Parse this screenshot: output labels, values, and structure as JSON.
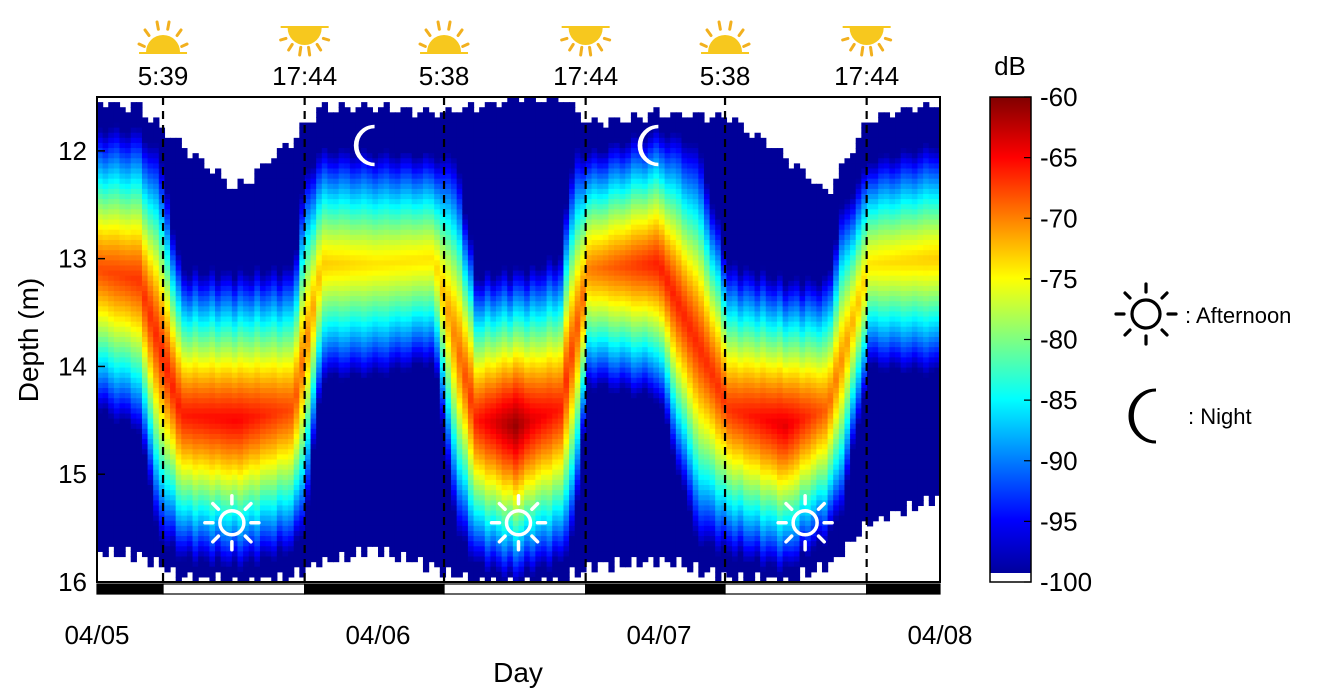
{
  "chart_data": {
    "type": "heatmap",
    "xlabel": "Day",
    "ylabel": "Depth (m)",
    "x_tick_labels": [
      "04/05",
      "04/06",
      "04/07",
      "04/08"
    ],
    "x_range_days": [
      0,
      3
    ],
    "y_range": [
      11.5,
      16
    ],
    "y_ticks": [
      12,
      13,
      14,
      15,
      16
    ],
    "y_inverted": true,
    "colorbar": {
      "unit": "dB",
      "range": [
        -100,
        -60
      ],
      "ticks": [
        -60,
        -65,
        -70,
        -75,
        -80,
        -85,
        -90,
        -95,
        -100
      ],
      "colormap": "jet"
    },
    "events": [
      {
        "type": "sunrise",
        "label": "5:39",
        "time_days": 0.235
      },
      {
        "type": "sunset",
        "label": "17:44",
        "time_days": 0.739
      },
      {
        "type": "sunrise",
        "label": "5:38",
        "time_days": 1.235
      },
      {
        "type": "sunset",
        "label": "17:44",
        "time_days": 1.739
      },
      {
        "type": "sunrise",
        "label": "5:38",
        "time_days": 2.235
      },
      {
        "type": "sunset",
        "label": "17:44",
        "time_days": 2.739
      }
    ],
    "symbols": [
      {
        "icon": "sun-outline-icon",
        "time_days": 0.48,
        "depth_m": 15.45
      },
      {
        "icon": "sun-outline-icon",
        "time_days": 1.5,
        "depth_m": 15.45
      },
      {
        "icon": "sun-outline-icon",
        "time_days": 2.52,
        "depth_m": 15.45
      },
      {
        "icon": "moon-icon",
        "time_days": 0.97,
        "depth_m": 11.95
      },
      {
        "icon": "moon-icon",
        "time_days": 1.98,
        "depth_m": 11.95
      }
    ],
    "profile_samples": [
      {
        "t": 0.0,
        "top": 11.55,
        "bottom": 15.7,
        "core": 13.1,
        "peak": -68
      },
      {
        "t": 0.15,
        "top": 11.6,
        "bottom": 15.75,
        "core": 13.2,
        "peak": -67
      },
      {
        "t": 0.3,
        "top": 11.95,
        "bottom": 15.95,
        "core": 14.45,
        "peak": -66
      },
      {
        "t": 0.5,
        "top": 12.35,
        "bottom": 16.0,
        "core": 14.5,
        "peak": -65
      },
      {
        "t": 0.7,
        "top": 11.9,
        "bottom": 15.95,
        "core": 14.4,
        "peak": -68
      },
      {
        "t": 0.8,
        "top": 11.6,
        "bottom": 15.8,
        "core": 13.05,
        "peak": -73
      },
      {
        "t": 1.0,
        "top": 11.6,
        "bottom": 15.7,
        "core": 13.05,
        "peak": -74
      },
      {
        "t": 1.2,
        "top": 11.65,
        "bottom": 15.85,
        "core": 13.0,
        "peak": -74
      },
      {
        "t": 1.35,
        "top": 11.6,
        "bottom": 16.0,
        "core": 14.5,
        "peak": -66
      },
      {
        "t": 1.49,
        "top": 11.5,
        "bottom": 16.0,
        "core": 14.55,
        "peak": -61
      },
      {
        "t": 1.55,
        "top": 11.5,
        "bottom": 16.0,
        "core": 14.5,
        "peak": -64
      },
      {
        "t": 1.65,
        "top": 11.5,
        "bottom": 16.0,
        "core": 14.4,
        "peak": -66
      },
      {
        "t": 1.75,
        "top": 11.75,
        "bottom": 15.85,
        "core": 13.1,
        "peak": -70
      },
      {
        "t": 2.0,
        "top": 11.65,
        "bottom": 15.8,
        "core": 13.05,
        "peak": -66
      },
      {
        "t": 2.25,
        "top": 11.7,
        "bottom": 15.95,
        "core": 14.4,
        "peak": -67
      },
      {
        "t": 2.45,
        "top": 12.05,
        "bottom": 16.0,
        "core": 14.55,
        "peak": -64
      },
      {
        "t": 2.6,
        "top": 12.4,
        "bottom": 15.85,
        "core": 14.4,
        "peak": -69
      },
      {
        "t": 2.75,
        "top": 11.7,
        "bottom": 15.45,
        "core": 13.05,
        "peak": -74
      },
      {
        "t": 3.0,
        "top": 11.55,
        "bottom": 15.2,
        "core": 13.0,
        "peak": -73
      }
    ]
  },
  "legend": {
    "afternoon_label": ": Afternoon",
    "night_label": ": Night"
  },
  "colors": {
    "sun_yellow": "#F7C81E",
    "sun_rays": "#F2B01E",
    "dashed_line": "#000000",
    "bar_black": "#000000",
    "bar_white": "#ffffff"
  }
}
